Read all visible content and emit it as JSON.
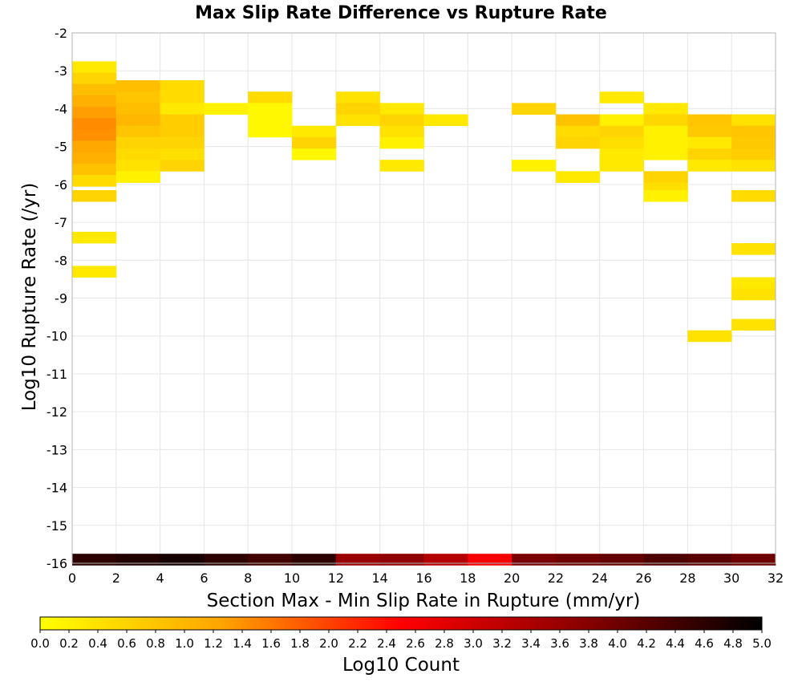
{
  "chart_data": {
    "type": "heatmap",
    "title": "Max Slip Rate Difference vs Rupture Rate",
    "xlabel": "Section Max - Min Slip Rate in Rupture (mm/yr)",
    "ylabel": "Log10 Rupture Rate (/yr)",
    "xlim": [
      0,
      32
    ],
    "ylim": [
      -16,
      -2
    ],
    "x_ticks": [
      0,
      2,
      4,
      6,
      8,
      10,
      12,
      14,
      16,
      18,
      20,
      22,
      24,
      26,
      28,
      30,
      32
    ],
    "y_ticks": [
      -2,
      -3,
      -4,
      -5,
      -6,
      -7,
      -8,
      -9,
      -10,
      -11,
      -12,
      -13,
      -14,
      -15,
      -16
    ],
    "x_bin_width": 2,
    "y_bin_height": 0.3,
    "grid": true,
    "colorbar": {
      "label": "Log10 Count",
      "min": 0.0,
      "max": 5.0,
      "ticks": [
        "0.0",
        "0.2",
        "0.4",
        "0.6",
        "0.8",
        "1.0",
        "1.2",
        "1.4",
        "1.6",
        "1.8",
        "2.0",
        "2.2",
        "2.4",
        "2.6",
        "2.8",
        "3.0",
        "3.2",
        "3.4",
        "3.6",
        "3.8",
        "4.0",
        "4.2",
        "4.4",
        "4.6",
        "4.8",
        "5.0"
      ],
      "colors": [
        "#ffff00",
        "#ffa500",
        "#ff0000",
        "#8b0000",
        "#000000"
      ]
    },
    "cells": [
      {
        "x": 0,
        "y": -2.9,
        "v": 0.3
      },
      {
        "x": 0,
        "y": -3.2,
        "v": 0.6
      },
      {
        "x": 0,
        "y": -3.5,
        "v": 0.9
      },
      {
        "x": 0,
        "y": -3.8,
        "v": 1.1
      },
      {
        "x": 0,
        "y": -4.1,
        "v": 1.3
      },
      {
        "x": 0,
        "y": -4.4,
        "v": 1.45
      },
      {
        "x": 0,
        "y": -4.7,
        "v": 1.4
      },
      {
        "x": 0,
        "y": -5.0,
        "v": 1.2
      },
      {
        "x": 0,
        "y": -5.3,
        "v": 1.1
      },
      {
        "x": 0,
        "y": -5.6,
        "v": 0.85
      },
      {
        "x": 0,
        "y": -5.9,
        "v": 0.5
      },
      {
        "x": 0,
        "y": -6.3,
        "v": 0.6
      },
      {
        "x": 0,
        "y": -7.4,
        "v": 0.3
      },
      {
        "x": 0,
        "y": -8.3,
        "v": 0.3
      },
      {
        "x": 2,
        "y": -3.4,
        "v": 0.9
      },
      {
        "x": 2,
        "y": -3.7,
        "v": 0.8
      },
      {
        "x": 2,
        "y": -4.0,
        "v": 0.9
      },
      {
        "x": 2,
        "y": -4.3,
        "v": 1.0
      },
      {
        "x": 2,
        "y": -4.6,
        "v": 0.8
      },
      {
        "x": 2,
        "y": -4.9,
        "v": 0.6
      },
      {
        "x": 2,
        "y": -5.2,
        "v": 0.5
      },
      {
        "x": 2,
        "y": -5.5,
        "v": 0.4
      },
      {
        "x": 2,
        "y": -5.8,
        "v": 0.2
      },
      {
        "x": 4,
        "y": -3.4,
        "v": 0.5
      },
      {
        "x": 4,
        "y": -3.7,
        "v": 0.5
      },
      {
        "x": 4,
        "y": -4.0,
        "v": 0.3
      },
      {
        "x": 4,
        "y": -4.3,
        "v": 0.7
      },
      {
        "x": 4,
        "y": -4.6,
        "v": 0.7
      },
      {
        "x": 4,
        "y": -4.9,
        "v": 0.6
      },
      {
        "x": 4,
        "y": -5.2,
        "v": 0.45
      },
      {
        "x": 4,
        "y": -5.5,
        "v": 0.6
      },
      {
        "x": 6,
        "y": -4.0,
        "v": 0.2
      },
      {
        "x": 8,
        "y": -3.7,
        "v": 0.5
      },
      {
        "x": 8,
        "y": -4.0,
        "v": 0.1
      },
      {
        "x": 8,
        "y": -4.3,
        "v": 0.1
      },
      {
        "x": 8,
        "y": -4.6,
        "v": 0.1
      },
      {
        "x": 10,
        "y": -4.6,
        "v": 0.3
      },
      {
        "x": 10,
        "y": -4.9,
        "v": 0.6
      },
      {
        "x": 10,
        "y": -5.2,
        "v": 0.1
      },
      {
        "x": 12,
        "y": -3.7,
        "v": 0.4
      },
      {
        "x": 12,
        "y": -4.0,
        "v": 0.6
      },
      {
        "x": 12,
        "y": -4.3,
        "v": 0.4
      },
      {
        "x": 14,
        "y": -4.0,
        "v": 0.3
      },
      {
        "x": 14,
        "y": -4.3,
        "v": 0.6
      },
      {
        "x": 14,
        "y": -4.6,
        "v": 0.4
      },
      {
        "x": 14,
        "y": -4.9,
        "v": 0.2
      },
      {
        "x": 14,
        "y": -5.5,
        "v": 0.3
      },
      {
        "x": 16,
        "y": -4.3,
        "v": 0.3
      },
      {
        "x": 20,
        "y": -4.0,
        "v": 0.6
      },
      {
        "x": 20,
        "y": -5.5,
        "v": 0.2
      },
      {
        "x": 22,
        "y": -4.3,
        "v": 0.85
      },
      {
        "x": 22,
        "y": -4.6,
        "v": 0.5
      },
      {
        "x": 22,
        "y": -4.9,
        "v": 0.6
      },
      {
        "x": 22,
        "y": -5.8,
        "v": 0.3
      },
      {
        "x": 24,
        "y": -3.7,
        "v": 0.3
      },
      {
        "x": 24,
        "y": -4.3,
        "v": 0.2
      },
      {
        "x": 24,
        "y": -4.6,
        "v": 0.6
      },
      {
        "x": 24,
        "y": -4.9,
        "v": 0.45
      },
      {
        "x": 24,
        "y": -5.2,
        "v": 0.3
      },
      {
        "x": 24,
        "y": -5.5,
        "v": 0.3
      },
      {
        "x": 26,
        "y": -4.0,
        "v": 0.3
      },
      {
        "x": 26,
        "y": -4.3,
        "v": 0.55
      },
      {
        "x": 26,
        "y": -4.6,
        "v": 0.2
      },
      {
        "x": 26,
        "y": -4.9,
        "v": 0.2
      },
      {
        "x": 26,
        "y": -5.2,
        "v": 0.2
      },
      {
        "x": 26,
        "y": -5.8,
        "v": 0.6
      },
      {
        "x": 26,
        "y": -6.1,
        "v": 0.45
      },
      {
        "x": 26,
        "y": -6.3,
        "v": 0.2
      },
      {
        "x": 28,
        "y": -4.3,
        "v": 0.8
      },
      {
        "x": 28,
        "y": -4.6,
        "v": 0.75
      },
      {
        "x": 28,
        "y": -4.9,
        "v": 0.3
      },
      {
        "x": 28,
        "y": -5.2,
        "v": 0.6
      },
      {
        "x": 28,
        "y": -5.5,
        "v": 0.3
      },
      {
        "x": 28,
        "y": -10.0,
        "v": 0.4
      },
      {
        "x": 30,
        "y": -4.3,
        "v": 0.4
      },
      {
        "x": 30,
        "y": -4.6,
        "v": 0.8
      },
      {
        "x": 30,
        "y": -4.9,
        "v": 0.75
      },
      {
        "x": 30,
        "y": -5.2,
        "v": 0.7
      },
      {
        "x": 30,
        "y": -5.5,
        "v": 0.4
      },
      {
        "x": 30,
        "y": -6.3,
        "v": 0.5
      },
      {
        "x": 30,
        "y": -7.7,
        "v": 0.4
      },
      {
        "x": 30,
        "y": -8.6,
        "v": 0.3
      },
      {
        "x": 30,
        "y": -8.9,
        "v": 0.4
      },
      {
        "x": 30,
        "y": -9.7,
        "v": 0.4
      },
      {
        "x": 0,
        "y": -15.9,
        "v": 4.6
      },
      {
        "x": 2,
        "y": -15.9,
        "v": 4.7
      },
      {
        "x": 4,
        "y": -15.9,
        "v": 4.8
      },
      {
        "x": 6,
        "y": -15.9,
        "v": 4.6
      },
      {
        "x": 8,
        "y": -15.9,
        "v": 4.4
      },
      {
        "x": 10,
        "y": -15.9,
        "v": 4.6
      },
      {
        "x": 12,
        "y": -15.9,
        "v": 3.6
      },
      {
        "x": 14,
        "y": -15.9,
        "v": 3.7
      },
      {
        "x": 16,
        "y": -15.9,
        "v": 3.3
      },
      {
        "x": 18,
        "y": -15.9,
        "v": 2.6
      },
      {
        "x": 20,
        "y": -15.9,
        "v": 3.9
      },
      {
        "x": 22,
        "y": -15.9,
        "v": 4.0
      },
      {
        "x": 24,
        "y": -15.9,
        "v": 4.1
      },
      {
        "x": 26,
        "y": -15.9,
        "v": 4.3
      },
      {
        "x": 28,
        "y": -15.9,
        "v": 4.2
      },
      {
        "x": 30,
        "y": -15.9,
        "v": 4.0
      }
    ]
  }
}
